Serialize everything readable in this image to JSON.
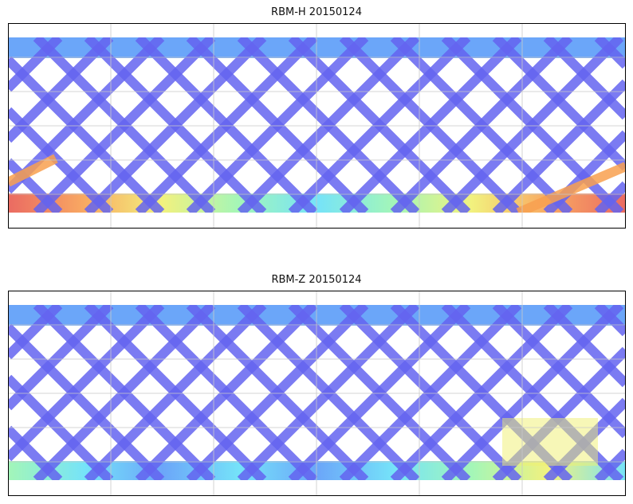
{
  "panels": [
    {
      "title": "RBM-H 20150124",
      "hot": "south"
    },
    {
      "title": "RBM-Z 20150124",
      "hot": "mild"
    }
  ],
  "colors": {
    "track": "#6464f0",
    "polar": "#5b9cf8",
    "cyan": "#66e0f8",
    "green": "#99f5b0",
    "yellow": "#f0f070",
    "orange": "#f8a050",
    "red": "#e85a50",
    "grid": "#c8c8c8"
  }
}
